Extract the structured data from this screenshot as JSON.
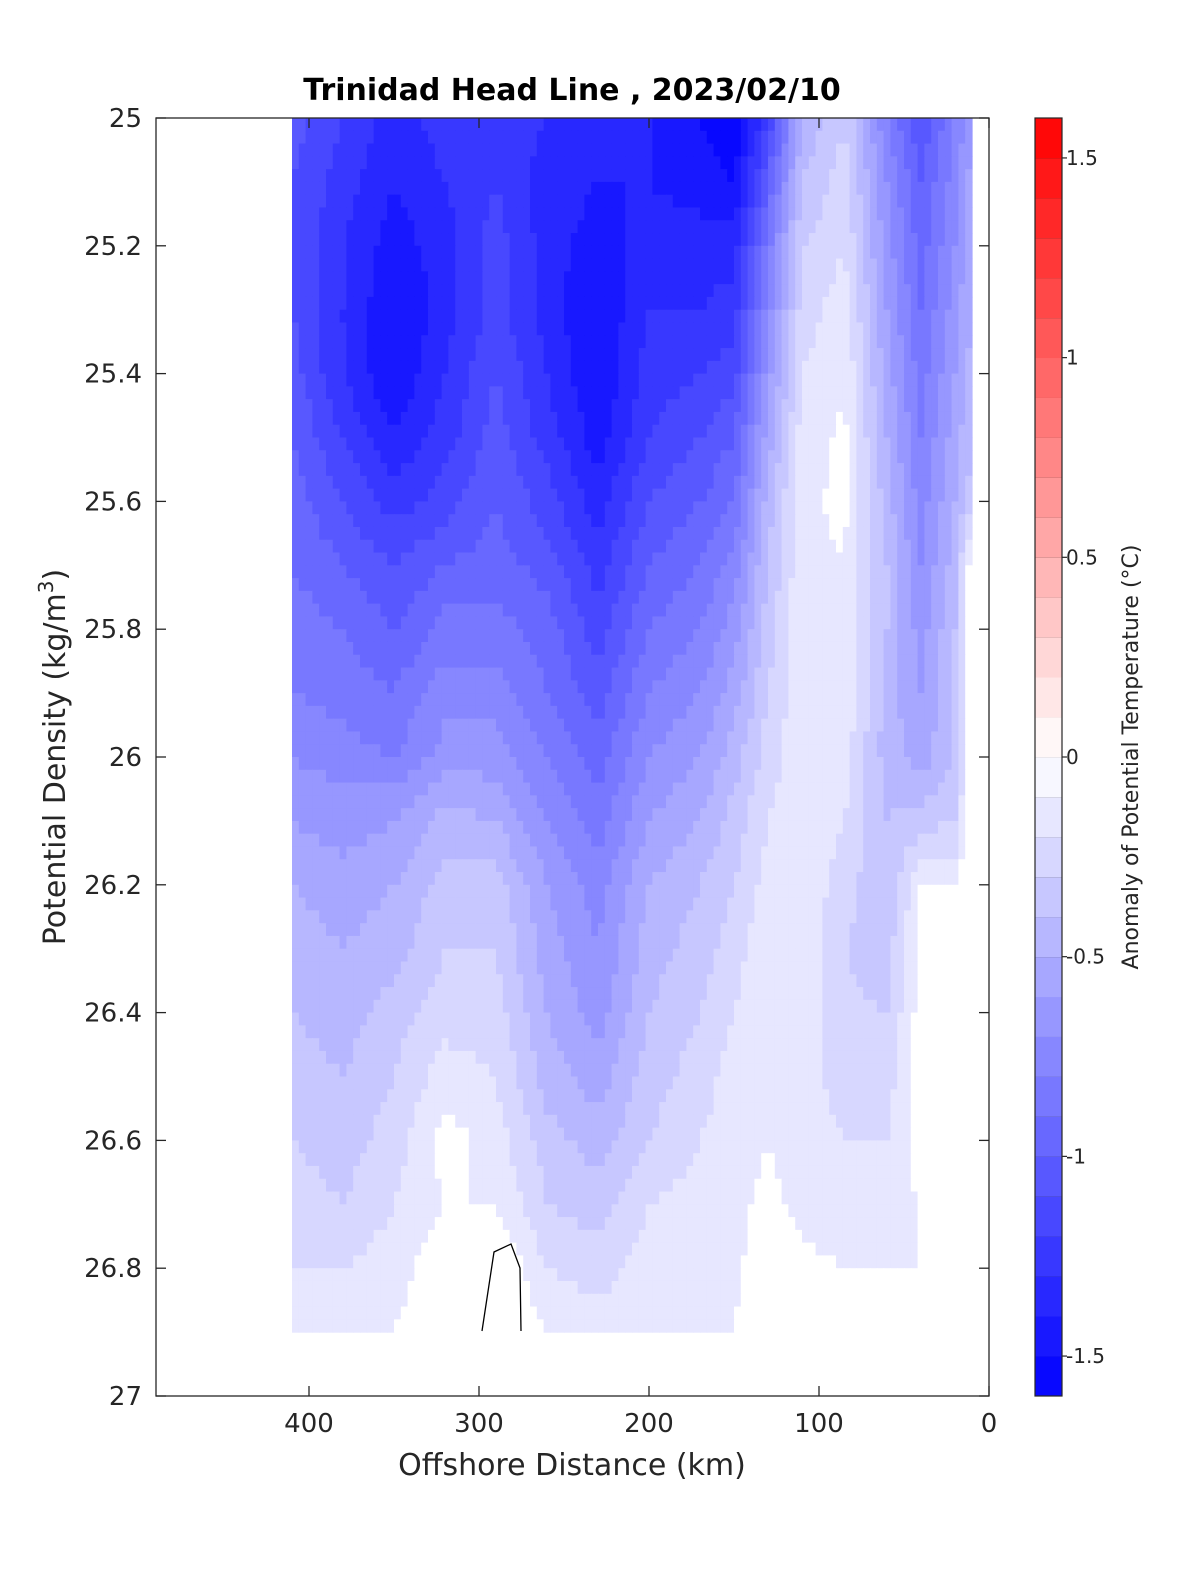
{
  "chart_data": {
    "type": "heatmap",
    "title": "Trinidad Head Line , 2023/02/10",
    "xlabel": "Offshore Distance (km)",
    "ylabel": "Potential Density (kg/m",
    "ylabel_sup": "3",
    "ylabel_close": ")",
    "x_reversed": true,
    "xlim": [
      0,
      490
    ],
    "ylim": [
      25,
      27
    ],
    "y_reversed": true,
    "x_ticks": [
      "400",
      "300",
      "200",
      "100",
      "0"
    ],
    "x_tick_values": [
      400,
      300,
      200,
      100,
      0
    ],
    "y_ticks": [
      "25",
      "25.2",
      "25.4",
      "25.6",
      "25.8",
      "26",
      "26.2",
      "26.4",
      "26.6",
      "26.8",
      "27"
    ],
    "y_tick_values": [
      25,
      25.2,
      25.4,
      25.6,
      25.8,
      26,
      26.2,
      26.4,
      26.6,
      26.8,
      27
    ],
    "colorbar": {
      "label": "Anomaly of Potential Temperature (°C)",
      "range": [
        -1.6,
        1.6
      ],
      "step": 0.1,
      "ticks": [
        "1.5",
        "1",
        "0.5",
        "0",
        "-0.5",
        "-1",
        "-1.5"
      ],
      "tick_values": [
        1.5,
        1,
        0.5,
        0,
        -0.5,
        -1,
        -1.5
      ],
      "low_color": "#0000ff",
      "high_color": "#ff0000",
      "mid_color": "#ffffff"
    },
    "data_extent": {
      "x_min": 10,
      "x_max": 410,
      "y_min": 25,
      "y_max": 26.9
    },
    "x_stations": [
      410,
      380,
      350,
      320,
      290,
      260,
      230,
      200,
      170,
      150,
      130,
      110,
      85,
      60,
      40,
      20,
      10
    ],
    "y_levels": [
      25.0,
      25.1,
      25.2,
      25.3,
      25.4,
      25.5,
      25.6,
      25.7,
      25.8,
      25.9,
      26.0,
      26.1,
      26.2,
      26.3,
      26.4,
      26.5,
      26.6,
      26.7,
      26.8,
      26.9
    ],
    "anomaly_grid": [
      [
        -1.05,
        -1.2,
        -1.35,
        -1.25,
        -1.25,
        -1.3,
        -1.35,
        -1.4,
        -1.5,
        -1.6,
        -1.2,
        -0.5,
        -0.3,
        -0.8,
        -1.1,
        -0.8,
        -0.6
      ],
      [
        -1.1,
        -1.25,
        -1.4,
        -1.3,
        -1.2,
        -1.35,
        -1.4,
        -1.4,
        -1.45,
        -1.5,
        -1.0,
        -0.4,
        -0.25,
        -0.7,
        -1.0,
        -0.75,
        -0.55
      ],
      [
        -1.1,
        -1.3,
        -1.45,
        -1.35,
        -1.15,
        -1.35,
        -1.45,
        -1.35,
        -1.35,
        -1.35,
        -0.85,
        -0.3,
        -0.2,
        -0.65,
        -0.95,
        -0.7,
        -0.5
      ],
      [
        -1.1,
        -1.3,
        -1.5,
        -1.35,
        -1.15,
        -1.35,
        -1.5,
        -1.3,
        -1.3,
        -1.25,
        -0.75,
        -0.25,
        -0.15,
        -0.6,
        -0.9,
        -0.65,
        -0.5
      ],
      [
        -1.05,
        -1.3,
        -1.5,
        -1.3,
        -1.1,
        -1.3,
        -1.5,
        -1.25,
        -1.2,
        -1.15,
        -0.65,
        -0.2,
        -0.1,
        -0.55,
        -0.85,
        -0.6,
        -0.45
      ],
      [
        -1.0,
        -1.2,
        -1.4,
        -1.25,
        -1.05,
        -1.25,
        -1.45,
        -1.2,
        -1.1,
        -1.0,
        -0.55,
        -0.15,
        -0.08,
        -0.5,
        -0.8,
        -0.55,
        -0.4
      ],
      [
        -0.95,
        -1.1,
        -1.25,
        -1.15,
        -1.0,
        -1.15,
        -1.35,
        -1.1,
        -1.0,
        -0.9,
        -0.45,
        -0.12,
        -0.08,
        -0.45,
        -0.75,
        -0.5,
        -0.35
      ],
      [
        -0.9,
        -1.0,
        -1.1,
        -1.0,
        -0.95,
        -1.05,
        -1.25,
        -1.0,
        -0.9,
        -0.75,
        -0.4,
        -0.12,
        -0.1,
        -0.4,
        -0.7,
        -0.45,
        0.0
      ],
      [
        -0.85,
        -0.9,
        -1.0,
        -0.85,
        -0.85,
        -0.95,
        -1.15,
        -0.9,
        -0.8,
        -0.65,
        -0.35,
        -0.12,
        -0.1,
        -0.4,
        -0.65,
        -0.4,
        0.0
      ],
      [
        -0.8,
        -0.85,
        -0.9,
        -0.75,
        -0.75,
        -0.9,
        -1.05,
        -0.8,
        -0.7,
        -0.55,
        -0.3,
        -0.12,
        -0.12,
        -0.45,
        -0.6,
        -0.4,
        0.0
      ],
      [
        -0.7,
        -0.75,
        -0.8,
        -0.65,
        -0.65,
        -0.8,
        -0.95,
        -0.7,
        -0.6,
        -0.45,
        -0.25,
        -0.12,
        -0.15,
        -0.45,
        -0.55,
        -0.4,
        0.0
      ],
      [
        -0.6,
        -0.65,
        -0.6,
        -0.45,
        -0.5,
        -0.7,
        -0.85,
        -0.6,
        -0.5,
        -0.35,
        -0.2,
        -0.12,
        -0.2,
        -0.4,
        -0.35,
        -0.3,
        0.0
      ],
      [
        -0.5,
        -0.55,
        -0.5,
        -0.35,
        -0.35,
        -0.6,
        -0.75,
        -0.5,
        -0.4,
        -0.3,
        -0.15,
        -0.12,
        -0.25,
        -0.4,
        -0.1,
        -0.1,
        0.0
      ],
      [
        -0.45,
        -0.5,
        -0.45,
        -0.3,
        -0.3,
        -0.55,
        -0.7,
        -0.45,
        -0.35,
        -0.25,
        -0.12,
        -0.12,
        -0.3,
        -0.35,
        -0.05,
        -0.1,
        0.0
      ],
      [
        -0.4,
        -0.45,
        -0.35,
        -0.25,
        -0.25,
        -0.5,
        -0.65,
        -0.4,
        -0.3,
        -0.2,
        -0.1,
        -0.12,
        -0.28,
        -0.3,
        -0.05,
        -0.1,
        0.0
      ],
      [
        -0.35,
        -0.4,
        -0.3,
        -0.15,
        -0.2,
        -0.45,
        -0.55,
        -0.35,
        -0.25,
        -0.15,
        -0.1,
        -0.15,
        -0.25,
        -0.25,
        -0.05,
        -0.1,
        0.0
      ],
      [
        -0.3,
        -0.35,
        -0.25,
        -0.05,
        -0.15,
        -0.35,
        -0.45,
        -0.3,
        -0.2,
        -0.15,
        -0.1,
        -0.15,
        -0.2,
        -0.2,
        -0.03,
        -0.1,
        0.0
      ],
      [
        -0.25,
        -0.3,
        -0.2,
        -0.1,
        -0.1,
        -0.3,
        -0.35,
        -0.2,
        -0.15,
        -0.12,
        -0.08,
        -0.12,
        -0.15,
        -0.15,
        -0.1,
        -0.1,
        0.0
      ],
      [
        -0.2,
        -0.2,
        -0.15,
        -0.03,
        0.02,
        -0.2,
        -0.25,
        -0.15,
        -0.12,
        -0.12,
        -0.05,
        -0.08,
        -0.1,
        -0.1,
        -0.1,
        -0.1,
        0.0
      ],
      [
        -0.15,
        -0.12,
        -0.1,
        -0.02,
        0.03,
        -0.1,
        -0.15,
        -0.1,
        -0.1,
        -0.1,
        -0.03,
        -0.05,
        -0.05,
        -0.05,
        -0.08,
        -0.08,
        0.0
      ]
    ]
  }
}
